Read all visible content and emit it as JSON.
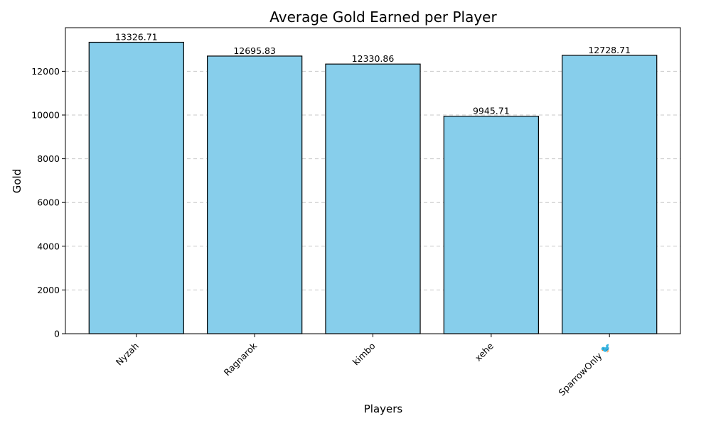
{
  "chart_data": {
    "type": "bar",
    "title": "Average Gold Earned per Player",
    "xlabel": "Players",
    "ylabel": "Gold",
    "categories": [
      "Nyzah",
      "Ragnarok",
      "kimbo",
      "xehe",
      "SparrowOnly 🐦"
    ],
    "values": [
      13326.71,
      12695.83,
      12330.86,
      9945.71,
      12728.71
    ],
    "value_labels": [
      "13326.71",
      "12695.83",
      "12330.86",
      "9945.71",
      "12728.71"
    ],
    "ylim": [
      0,
      13993
    ],
    "yticks": [
      0,
      2000,
      4000,
      6000,
      8000,
      10000,
      12000
    ],
    "grid": "y-dashed",
    "bar_color": "#87CEEB",
    "edge_color": "#000000",
    "xtick_rotation": 45
  }
}
